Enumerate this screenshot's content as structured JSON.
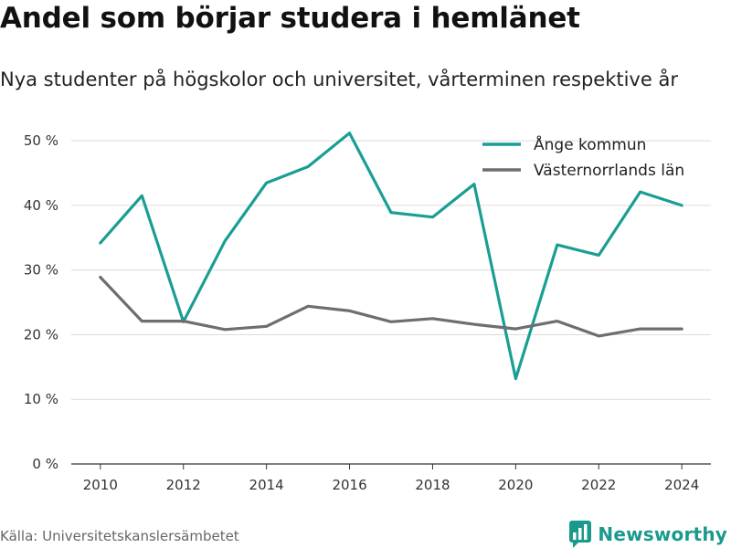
{
  "title": "Andel som börjar studera i hemlänet",
  "subtitle": "Nya studenter på högskolor och universitet, vårterminen respektive år",
  "source": "Källa: Universitetskanslersämbetet",
  "brand": {
    "name": "Newsworthy",
    "icon": "newsworthy-logo-icon",
    "color": "#1a9a8c"
  },
  "chart_data": {
    "type": "line",
    "title": "Andel som börjar studera i hemlänet",
    "subtitle": "Nya studenter på högskolor och universitet, vårterminen respektive år",
    "x": [
      2010,
      2011,
      2012,
      2013,
      2014,
      2015,
      2016,
      2017,
      2018,
      2019,
      2020,
      2021,
      2022,
      2023,
      2024
    ],
    "x_ticks": [
      "2010",
      "2012",
      "2014",
      "2016",
      "2018",
      "2020",
      "2022",
      "2024"
    ],
    "y_ticks": [
      "0 %",
      "10 %",
      "20 %",
      "30 %",
      "40 %",
      "50 %"
    ],
    "ylim": [
      0,
      52
    ],
    "xlim": [
      2009.3,
      2024.7
    ],
    "grid": "horizontal",
    "legend_position": "top-right",
    "series": [
      {
        "name": "Ånge kommun",
        "color": "#1a9e94",
        "values": [
          34.2,
          41.5,
          22.0,
          34.5,
          43.5,
          46.0,
          51.2,
          38.9,
          38.2,
          43.3,
          13.2,
          33.9,
          32.3,
          42.1,
          40.0
        ]
      },
      {
        "name": "Västernorrlands län",
        "color": "#6e6e70",
        "values": [
          28.9,
          22.1,
          22.1,
          20.8,
          21.3,
          24.4,
          23.7,
          22.0,
          22.5,
          21.6,
          20.9,
          22.1,
          19.8,
          20.9,
          20.9
        ]
      }
    ]
  }
}
